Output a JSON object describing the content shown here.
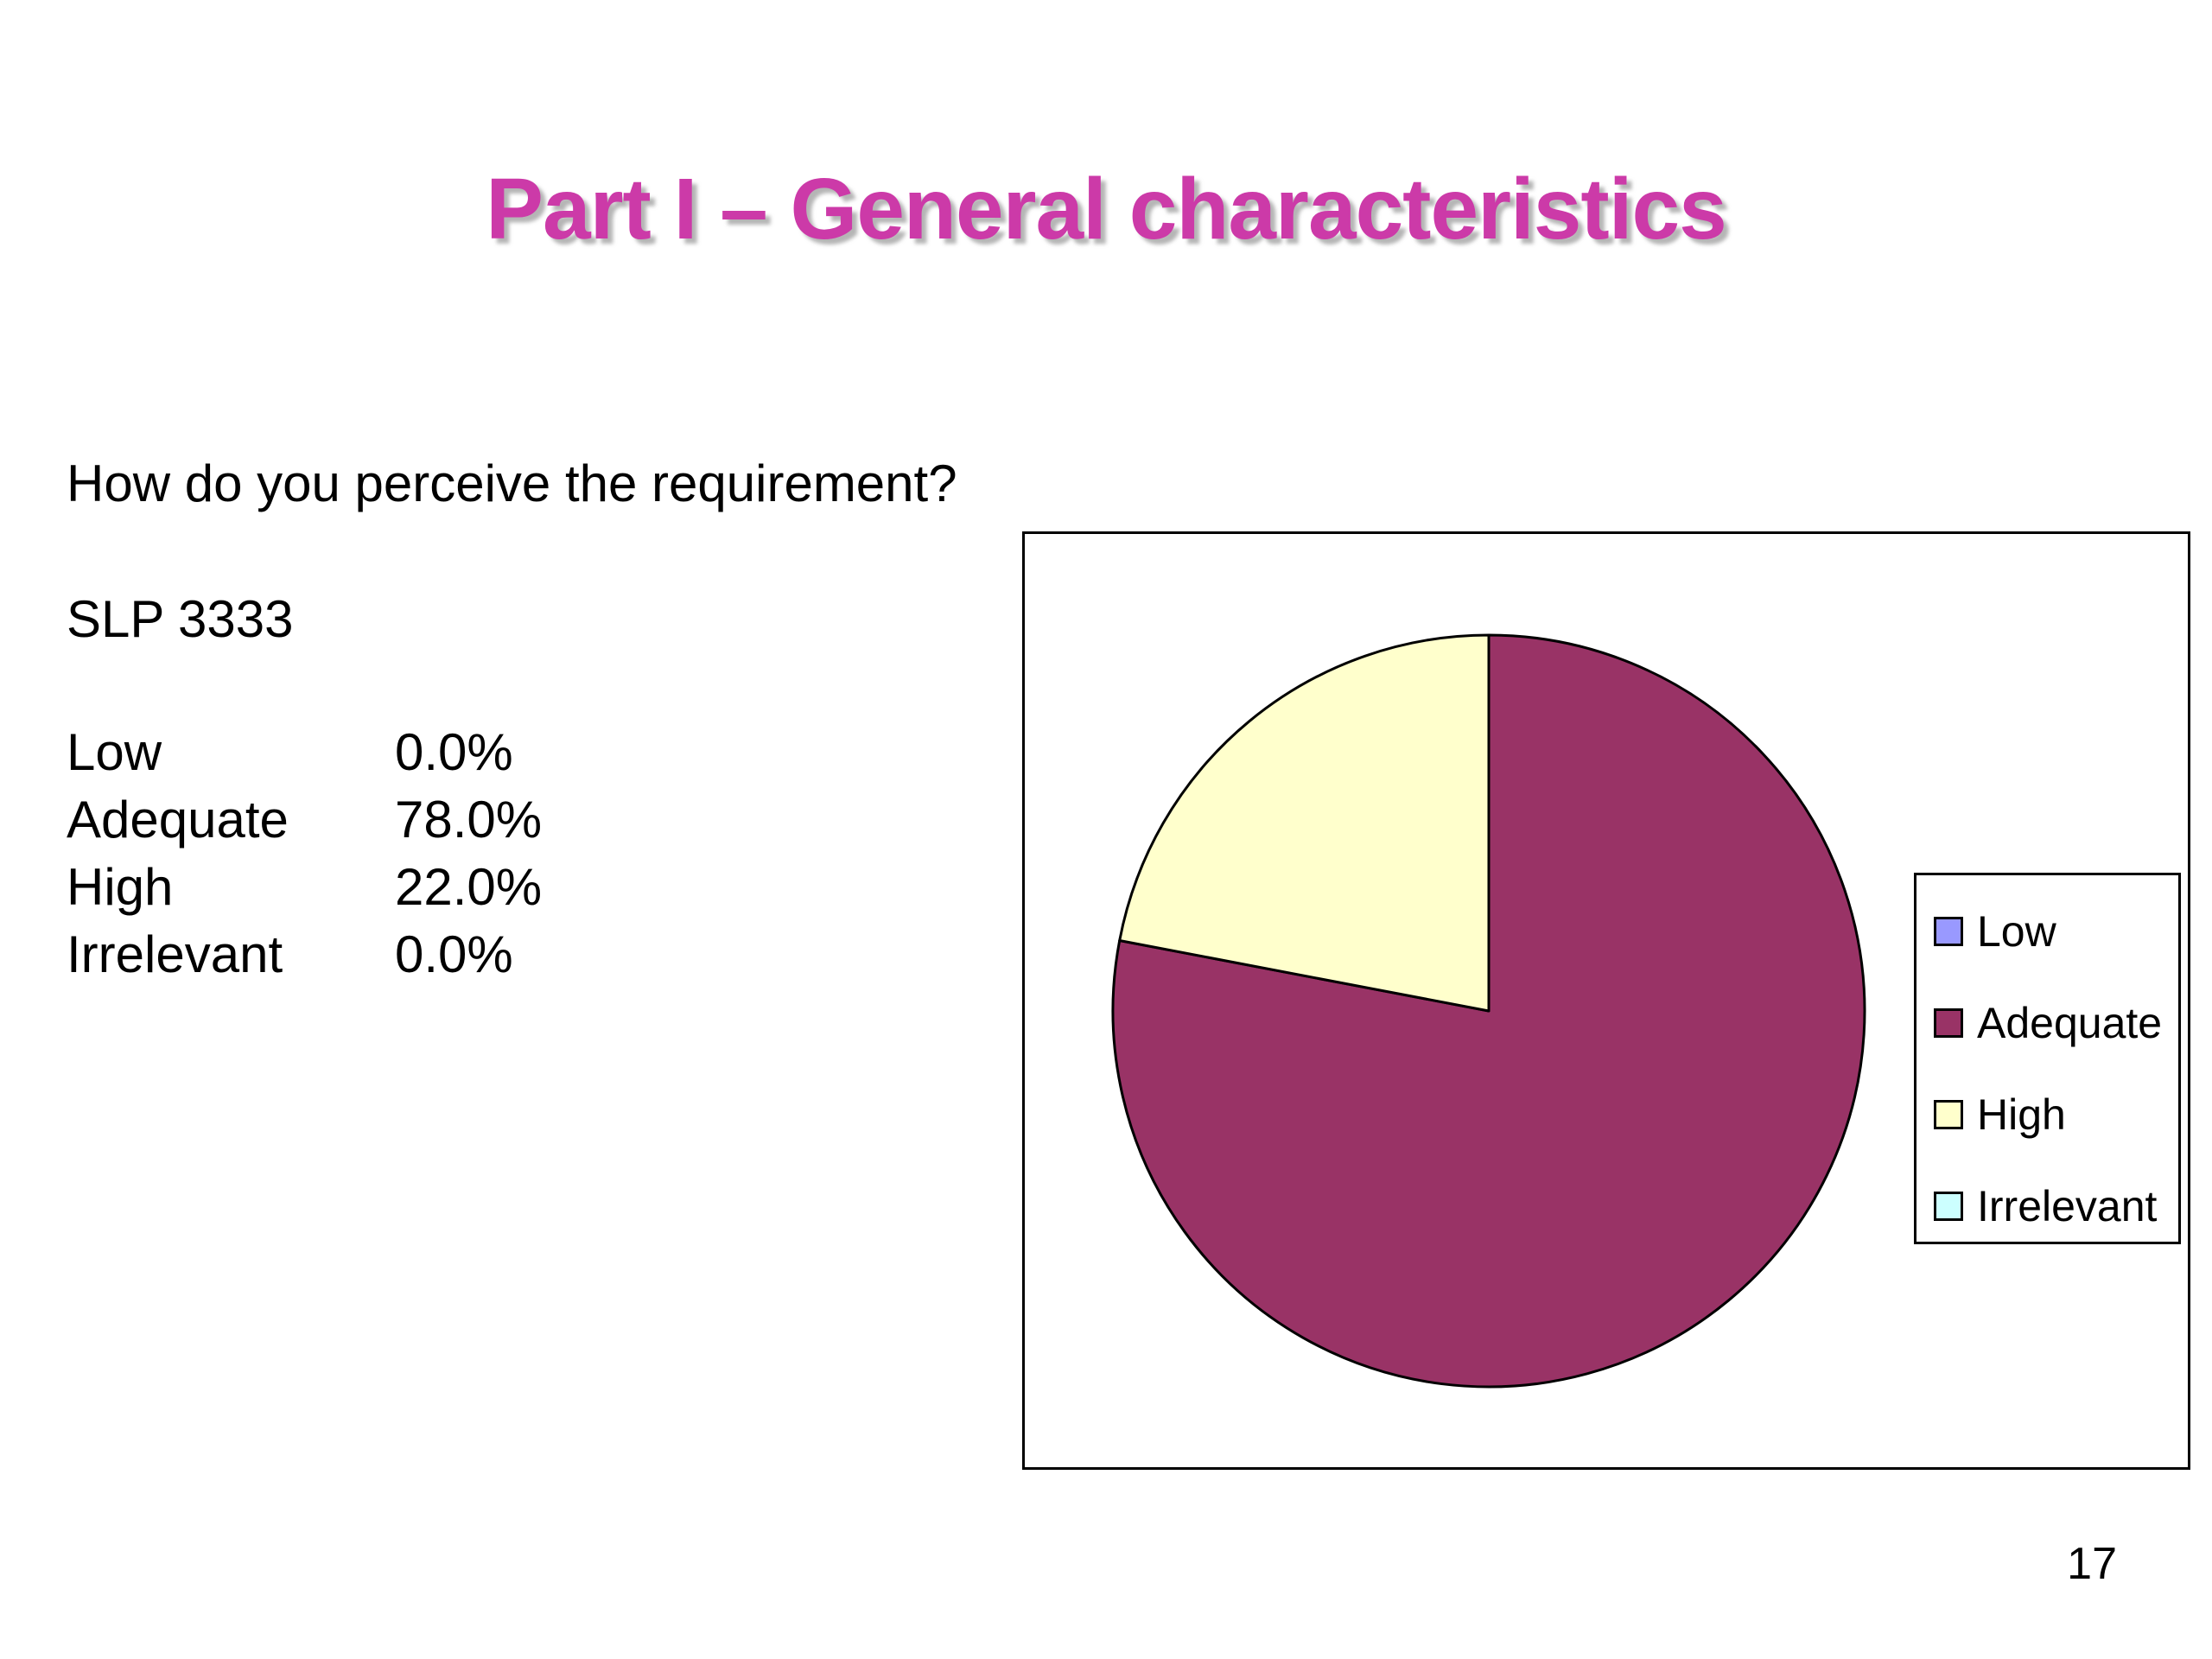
{
  "slide": {
    "title": "Part I – General characteristics",
    "question": "How do you perceive the requirement?",
    "subject": "SLP 3333",
    "page_number": "17"
  },
  "stats": [
    {
      "label": "Low",
      "value": "0.0%"
    },
    {
      "label": "Adequate",
      "value": "78.0%"
    },
    {
      "label": "High",
      "value": "22.0%"
    },
    {
      "label": "Irrelevant",
      "value": "0.0%"
    }
  ],
  "chart_data": {
    "type": "pie",
    "title": "",
    "categories": [
      "Low",
      "Adequate",
      "High",
      "Irrelevant"
    ],
    "values": [
      0.0,
      78.0,
      22.0,
      0.0
    ],
    "colors": [
      "#9999ff",
      "#993366",
      "#ffffcc",
      "#ccffff"
    ],
    "start_angle": "12 o'clock, clockwise",
    "legend_position": "right",
    "legend": [
      "Low",
      "Adequate",
      "High",
      "Irrelevant"
    ]
  },
  "colors": {
    "title": "#cc3aa8",
    "text": "#000000",
    "background": "#ffffff"
  }
}
